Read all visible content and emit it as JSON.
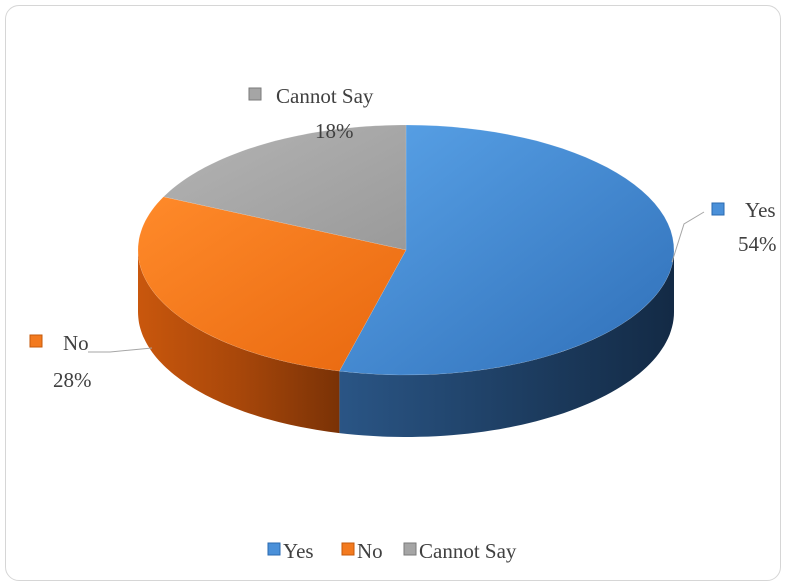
{
  "chart_data": {
    "type": "pie",
    "title": "",
    "three_d": true,
    "categories": [
      "Yes",
      "No",
      "Cannot Say"
    ],
    "values": [
      54,
      28,
      18
    ],
    "percent_labels": [
      "54%",
      "28%",
      "18%"
    ],
    "colors": [
      "#4a90d9",
      "#f37a1f",
      "#a5a5a5"
    ],
    "legend": {
      "position": "bottom",
      "entries": [
        "Yes",
        "No",
        "Cannot Say"
      ]
    },
    "data_labels": true
  }
}
